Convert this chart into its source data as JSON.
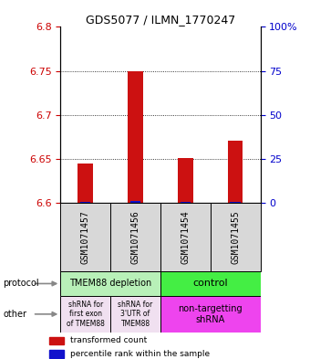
{
  "title": "GDS5077 / ILMN_1770247",
  "samples": [
    "GSM1071457",
    "GSM1071456",
    "GSM1071454",
    "GSM1071455"
  ],
  "red_values": [
    6.645,
    6.75,
    6.651,
    6.671
  ],
  "blue_values": [
    6.601,
    6.602,
    6.601,
    6.601
  ],
  "ylim": [
    6.6,
    6.8
  ],
  "yticks_left": [
    6.6,
    6.65,
    6.7,
    6.75,
    6.8
  ],
  "yticks_right": [
    0,
    25,
    50,
    75,
    100
  ],
  "ytick_labels_right": [
    "0",
    "25",
    "50",
    "75",
    "100%"
  ],
  "protocol_labels": [
    "TMEM88 depletion",
    "control"
  ],
  "protocol_colors": [
    "#b8f0b8",
    "#44ee44"
  ],
  "other_labels": [
    "shRNA for\nfirst exon\nof TMEM88",
    "shRNA for\n3'UTR of\nTMEM88",
    "non-targetting\nshRNA"
  ],
  "other_colors_left": "#f0e0f0",
  "other_color_right": "#ee44ee",
  "legend_red": "transformed count",
  "legend_blue": "percentile rank within the sample",
  "bar_color_red": "#cc1111",
  "bar_color_blue": "#1111cc",
  "bg_color": "#d8d8d8",
  "left_label_color": "#cc0000",
  "right_label_color": "#0000cc"
}
